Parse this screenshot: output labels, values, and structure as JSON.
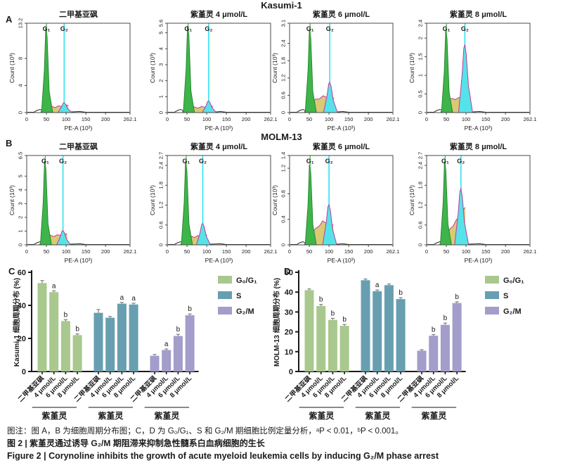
{
  "figure": {
    "panel_a_label": "A",
    "panel_b_label": "B",
    "panel_c_label": "C",
    "panel_d_label": "D",
    "row_a_title": "Kasumi-1",
    "row_b_title": "MOLM-13"
  },
  "flow_common": {
    "xlabel": "PE-A (10³)",
    "ylabel": "Count (10³)",
    "xticks": [
      0,
      50,
      100,
      150,
      200,
      262.1
    ],
    "xmax": 262.1,
    "g1_label": "G₁",
    "g2_label": "G₂"
  },
  "colors": {
    "bar_green": "#a8c88e",
    "bar_blue": "#679fb0",
    "bar_purple": "#a29dca",
    "flow_green": "#3db549",
    "flow_green_dark": "#1f7a28",
    "flow_green_line": "#44c04e",
    "flow_cyan": "#55e3ea",
    "flow_cyan_line": "#2fe2ef",
    "flow_yellow": "#d9ca74",
    "flow_magenta": "#c2399f",
    "axis": "#4a4a4a",
    "text": "#1a1a1a"
  },
  "chart_data": [
    {
      "id": "flow_row_a",
      "type": "area",
      "cell_line": "Kasumi-1",
      "xlabel": "PE-A (10³)",
      "ylabel": "Count (10³)",
      "plots": [
        {
          "title": "二甲基亚砜",
          "ymax": 13.2,
          "yticks": [
            0,
            4,
            8,
            13.2
          ],
          "g1x": 50,
          "g2x": 95,
          "g1h": 0.95,
          "sh": 0.055,
          "sh2": 0.08,
          "g2h": 0.11
        },
        {
          "title": "紫堇灵 4 μmol/L",
          "ymax": 5.6,
          "yticks": [
            0,
            1,
            2,
            3,
            4,
            5,
            5.6
          ],
          "g1x": 53,
          "g2x": 105,
          "g1h": 0.97,
          "sh": 0.05,
          "sh2": 0.07,
          "g2h": 0.13
        },
        {
          "title": "紫堇灵 6 μmol/L",
          "ymax": 3.1,
          "yticks": [
            0,
            0.6,
            1.2,
            1.8,
            2.4,
            3.1
          ],
          "g1x": 52,
          "g2x": 102,
          "g1h": 0.93,
          "sh": 0.12,
          "smid": 0.18,
          "sh2": 0.16,
          "g2h": 0.34
        },
        {
          "title": "紫堇灵 8 μmol/L",
          "ymax": 2.4,
          "yticks": [
            0,
            0.5,
            1,
            1.5,
            2,
            2.4
          ],
          "g1x": 50,
          "g2x": 97,
          "g1h": 0.92,
          "sh": 0.14,
          "sh2": 0.18,
          "g2h": 0.76
        }
      ]
    },
    {
      "id": "flow_row_b",
      "type": "area",
      "cell_line": "MOLM-13",
      "xlabel": "PE-A (10³)",
      "ylabel": "Count (10³)",
      "plots": [
        {
          "title": "二甲基亚砜",
          "ymax": 6.5,
          "yticks": [
            0,
            1,
            2,
            3,
            4,
            5,
            6.5
          ],
          "g1x": 47,
          "g2x": 92,
          "g1h": 0.94,
          "sh": 0.09,
          "sh2": 0.12,
          "g2h": 0.16
        },
        {
          "title": "紫堇灵 4 μmol/L",
          "ymax": 2.7,
          "yticks": [
            0,
            0.6,
            1.2,
            1.8,
            2.4,
            2.7
          ],
          "g1x": 48,
          "g2x": 90,
          "g1h": 0.93,
          "sh": 0.08,
          "sh2": 0.11,
          "g2h": 0.24
        },
        {
          "title": "紫堇灵 6 μmol/L",
          "ymax": 1.4,
          "yticks": [
            0,
            0.4,
            0.8,
            1.2,
            1.4
          ],
          "g1x": 52,
          "g2x": 100,
          "g1h": 0.9,
          "sh": 0.13,
          "smid": 0.26,
          "sh2": 0.22,
          "g2h": 0.45
        },
        {
          "title": "紫堇灵 8 μmol/L",
          "ymax": 2.7,
          "yticks": [
            0,
            0.6,
            1.2,
            1.8,
            2.4,
            2.7
          ],
          "g1x": 47,
          "g2x": 87,
          "g1h": 0.93,
          "sh": 0.12,
          "sh2": 0.42,
          "g2h": 0.63
        }
      ]
    },
    {
      "id": "kasumi_bars",
      "type": "bar",
      "ylabel": "Kasumi-1 细胞周期分布 (%)",
      "ylim": [
        0,
        60
      ],
      "yticks": [
        0,
        20,
        40,
        60
      ],
      "group_label": "紫堇灵",
      "treatments": [
        "二甲基亚砜",
        "4 μmol/L",
        "6 μmol/L",
        "8 μmol/L"
      ],
      "legend_position": "right-top",
      "series": [
        {
          "name": "G₀/G₁",
          "color": "#a8c88e",
          "values": [
            53.5,
            48,
            30.5,
            22
          ],
          "errors": [
            1.5,
            0.8,
            0.8,
            0.7
          ],
          "letters": [
            "",
            "a",
            "b",
            "b"
          ]
        },
        {
          "name": "S",
          "color": "#679fb0",
          "values": [
            35.5,
            32.5,
            41,
            40.5
          ],
          "errors": [
            2,
            0.8,
            0.8,
            0.8
          ],
          "letters": [
            "",
            "",
            "a",
            "a"
          ]
        },
        {
          "name": "G₂/M",
          "color": "#a29dca",
          "values": [
            9.5,
            13,
            21.5,
            34
          ],
          "errors": [
            0.8,
            0.6,
            1,
            0.8
          ],
          "letters": [
            "",
            "a",
            "b",
            "b"
          ]
        }
      ]
    },
    {
      "id": "molm_bars",
      "type": "bar",
      "ylabel": "MOLM-13 细胞周期分布 (%)",
      "ylim": [
        0,
        50
      ],
      "yticks": [
        0,
        10,
        20,
        30,
        40,
        50
      ],
      "group_label": "紫堇灵",
      "treatments": [
        "二甲基亚砜",
        "4 μmol/L",
        "6 μmol/L",
        "8 μmol/L"
      ],
      "legend_position": "right-top",
      "series": [
        {
          "name": "G₀/G₁",
          "color": "#a8c88e",
          "values": [
            41,
            33,
            26,
            23
          ],
          "errors": [
            0.6,
            0.8,
            0.8,
            0.7
          ],
          "letters": [
            "",
            "b",
            "b",
            "b"
          ]
        },
        {
          "name": "S",
          "color": "#679fb0",
          "values": [
            46,
            40.5,
            43.5,
            36.5
          ],
          "errors": [
            0.6,
            0.6,
            0.6,
            0.7
          ],
          "letters": [
            "",
            "a",
            "",
            "b"
          ]
        },
        {
          "name": "G₂/M",
          "color": "#a29dca",
          "values": [
            10.5,
            18,
            23.5,
            34.5
          ],
          "errors": [
            0.5,
            0.6,
            0.9,
            0.6
          ],
          "letters": [
            "",
            "b",
            "b",
            "b"
          ]
        }
      ]
    }
  ],
  "captions": {
    "note": "图注：图 A，B 为细胞周期分布图；C，D 为 G₀/G₁、S 和 G₂/M 期细胞比例定量分析，ᵃP < 0.01，ᵇP < 0.001。",
    "title_cn": "图 2 | 紫堇灵通过诱导 G₂/M 期阻滞来抑制急性髓系白血病细胞的生长",
    "title_en": "Figure 2 | Corynoline inhibits the growth of acute myeloid leukemia cells by inducing G₂/M phase arrest"
  }
}
